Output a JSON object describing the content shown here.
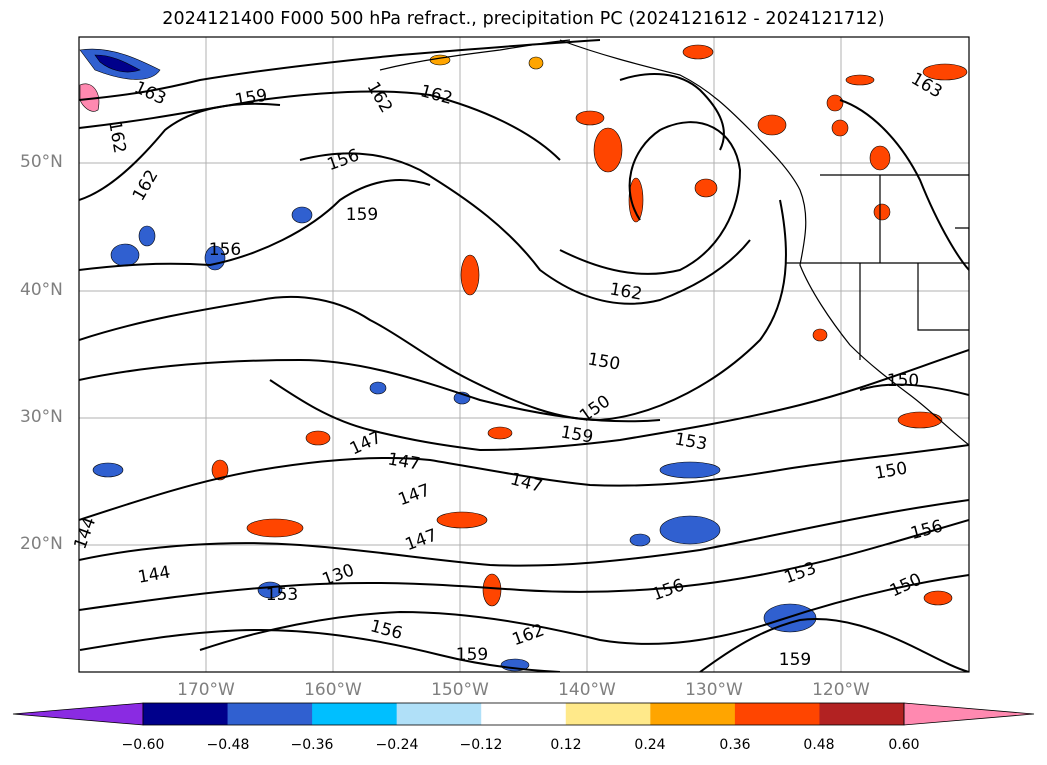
{
  "title": "2024121400 F000 500 hPa refract., precipitation PC (2024121612 - 2024121712)",
  "map": {
    "lat_labels": [
      "50°N",
      "40°N",
      "30°N",
      "20°N"
    ],
    "lon_labels": [
      "170°W",
      "160°W",
      "150°W",
      "140°W",
      "130°W",
      "120°W"
    ],
    "contour_labels": [
      "163",
      "159",
      "162",
      "162",
      "162",
      "162",
      "156",
      "156",
      "159",
      "153",
      "162",
      "150",
      "150",
      "159",
      "153",
      "147",
      "147",
      "147",
      "147",
      "147",
      "150",
      "144",
      "144",
      "130",
      "153",
      "156",
      "156",
      "156",
      "150",
      "162",
      "159",
      "159",
      "150",
      "163"
    ]
  },
  "colorbar": {
    "colors": [
      "#8a2be2",
      "#00008b",
      "#3060d0",
      "#00bfff",
      "#b0e0f8",
      "#ffffff",
      "#ffe98a",
      "#ffa500",
      "#ff4500",
      "#b22222",
      "#ff89b0"
    ],
    "ticks": [
      "−0.60",
      "−0.48",
      "−0.36",
      "−0.24",
      "−0.12",
      "0.12",
      "0.24",
      "0.36",
      "0.48",
      "0.60"
    ]
  }
}
